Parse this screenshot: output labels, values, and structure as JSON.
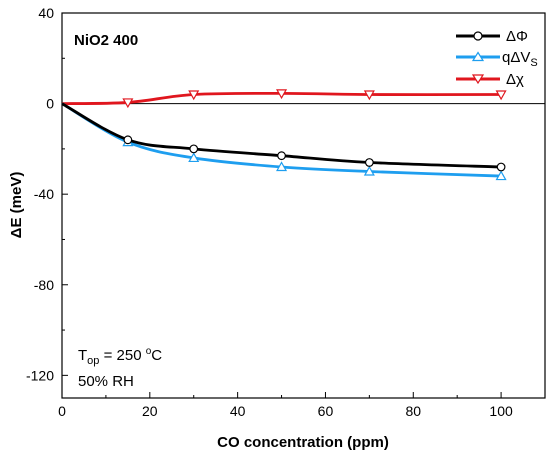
{
  "chart_data": {
    "type": "line",
    "title": "NiO2 400",
    "xlabel": "CO concentration (ppm)",
    "ylabel": "ΔE (meV)",
    "xlim": [
      0,
      110
    ],
    "ylim": [
      -130,
      40
    ],
    "xticks": [
      0,
      20,
      40,
      60,
      80,
      100
    ],
    "yticks": [
      40,
      0,
      -40,
      -80,
      -120
    ],
    "grid": false,
    "legend_position": "top-right",
    "annotations": [
      "T_op = 250 °C",
      "50% RH"
    ],
    "series": [
      {
        "name": "ΔΦ",
        "color": "#000000",
        "marker": "circle",
        "x": [
          0,
          15,
          30,
          50,
          70,
          100
        ],
        "y": [
          0,
          -16,
          -20,
          -23,
          -26,
          -28
        ]
      },
      {
        "name": "qΔV_S",
        "color": "#1E9EEF",
        "marker": "triangle-up",
        "x": [
          0,
          15,
          30,
          50,
          70,
          100
        ],
        "y": [
          0,
          -17,
          -24,
          -28,
          -30,
          -32
        ]
      },
      {
        "name": "Δχ",
        "color": "#E0161E",
        "marker": "triangle-down",
        "x": [
          0,
          15,
          30,
          50,
          70,
          100
        ],
        "y": [
          0,
          0.5,
          4,
          4.5,
          4,
          4
        ]
      }
    ]
  },
  "legend": {
    "dphi": "ΔΦ",
    "qdvs_main": "qΔV",
    "qdvs_sub": "S",
    "dchi": "Δχ"
  },
  "annotation": {
    "top_prefix": "T",
    "top_sub": "op",
    "top_value": " = 250 ",
    "top_deg": "o",
    "top_unit": "C",
    "rh": "50% RH"
  }
}
